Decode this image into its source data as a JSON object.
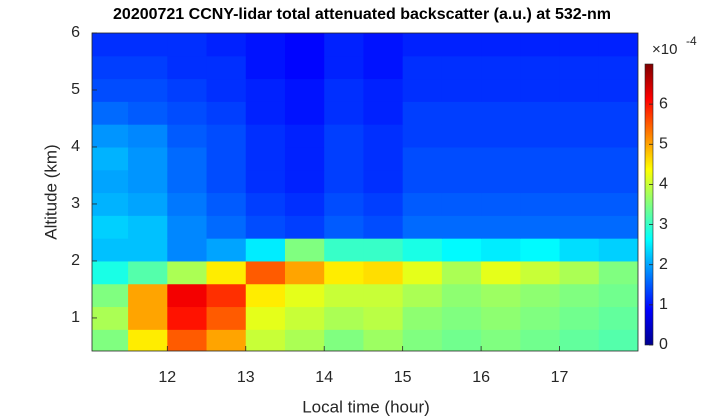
{
  "chart_data": {
    "type": "heatmap",
    "title": "20200721 CCNY-lidar total attenuated backscatter (a.u.) at 532-nm",
    "x_label": "Local time (hour)",
    "y_label": "Altitude (km)",
    "xlim": [
      11.04,
      18.0
    ],
    "xticks": [
      12,
      13,
      14,
      15,
      16,
      17
    ],
    "ylim": [
      0.42,
      6
    ],
    "yticks": [
      1,
      2,
      3,
      4,
      5,
      6
    ],
    "colormap": "jet",
    "clim": [
      0,
      7
    ],
    "cticks": [
      0,
      1,
      2,
      3,
      4,
      5,
      6
    ],
    "colorbar_label": {
      "base": "×10",
      "exponent": "-4"
    },
    "x_edges": [
      11.0,
      11.5,
      12.0,
      12.5,
      13.0,
      13.5,
      14.0,
      14.5,
      15.0,
      15.5,
      16.0,
      16.5,
      17.0,
      17.5,
      18.0
    ],
    "y_edges": [
      0.4,
      0.8,
      1.2,
      1.6,
      2.0,
      2.4,
      2.8,
      3.2,
      3.6,
      4.0,
      4.4,
      4.8,
      5.2,
      5.6,
      6.0
    ],
    "z": [
      [
        3.5,
        4.5,
        5.5,
        5.0,
        4.0,
        3.8,
        3.5,
        3.7,
        3.5,
        3.4,
        3.5,
        3.4,
        3.3,
        3.2
      ],
      [
        3.8,
        5.0,
        6.0,
        5.5,
        4.2,
        4.0,
        3.8,
        3.9,
        3.6,
        3.5,
        3.6,
        3.5,
        3.4,
        3.3
      ],
      [
        3.5,
        5.0,
        6.2,
        5.8,
        4.5,
        4.2,
        4.0,
        4.0,
        3.8,
        3.6,
        3.7,
        3.6,
        3.5,
        3.4
      ],
      [
        2.8,
        3.2,
        3.8,
        4.5,
        5.5,
        5.0,
        4.5,
        4.6,
        4.2,
        3.8,
        4.2,
        4.0,
        3.8,
        3.5
      ],
      [
        2.2,
        2.2,
        1.8,
        2.0,
        2.5,
        3.5,
        3.0,
        3.0,
        2.8,
        2.6,
        2.5,
        2.6,
        2.4,
        2.3
      ],
      [
        2.3,
        2.2,
        1.8,
        1.6,
        1.4,
        1.3,
        1.5,
        1.4,
        1.6,
        1.6,
        1.6,
        1.6,
        1.6,
        1.6
      ],
      [
        2.1,
        2.0,
        1.7,
        1.5,
        1.3,
        1.2,
        1.4,
        1.3,
        1.5,
        1.5,
        1.5,
        1.5,
        1.5,
        1.5
      ],
      [
        2.0,
        1.9,
        1.6,
        1.4,
        1.2,
        1.1,
        1.3,
        1.2,
        1.4,
        1.4,
        1.4,
        1.4,
        1.4,
        1.4
      ],
      [
        2.1,
        1.9,
        1.6,
        1.4,
        1.2,
        1.1,
        1.3,
        1.2,
        1.4,
        1.4,
        1.4,
        1.4,
        1.4,
        1.4
      ],
      [
        1.9,
        1.8,
        1.5,
        1.4,
        1.2,
        1.1,
        1.3,
        1.2,
        1.3,
        1.3,
        1.3,
        1.3,
        1.3,
        1.3
      ],
      [
        1.6,
        1.5,
        1.4,
        1.3,
        1.1,
        1.0,
        1.2,
        1.1,
        1.3,
        1.3,
        1.3,
        1.3,
        1.3,
        1.3
      ],
      [
        1.4,
        1.4,
        1.3,
        1.2,
        1.1,
        1.0,
        1.2,
        1.1,
        1.2,
        1.2,
        1.2,
        1.2,
        1.2,
        1.2
      ],
      [
        1.3,
        1.3,
        1.2,
        1.2,
        1.0,
        0.9,
        1.1,
        1.0,
        1.2,
        1.2,
        1.2,
        1.2,
        1.2,
        1.2
      ],
      [
        1.2,
        1.2,
        1.2,
        1.1,
        1.0,
        0.9,
        1.1,
        1.0,
        1.1,
        1.1,
        1.1,
        1.1,
        1.1,
        1.1
      ]
    ]
  }
}
